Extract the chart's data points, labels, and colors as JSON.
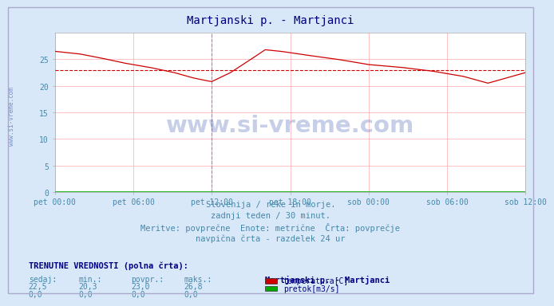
{
  "title": "Martjanski p. - Martjanci",
  "title_color": "#000080",
  "bg_color": "#d8e8f8",
  "plot_bg_color": "#ffffff",
  "grid_color": "#ffaaaa",
  "x_labels": [
    "pet 00:00",
    "pet 06:00",
    "pet 12:00",
    "pet 18:00",
    "sob 00:00",
    "sob 06:00",
    "sob 12:00"
  ],
  "x_ticks_pos": [
    0,
    0.25,
    0.5,
    0.75,
    1.0,
    1.25,
    1.5
  ],
  "ylim": [
    0,
    30
  ],
  "yticks": [
    0,
    5,
    10,
    15,
    20,
    25
  ],
  "avg_line_value": 23.0,
  "avg_line_color": "#cc0000",
  "temp_line_color": "#cc0000",
  "pretok_line_color": "#00aa00",
  "vline_color": "#ff44ff",
  "vline_positions": [
    0.5,
    1.5
  ],
  "watermark_text": "www.si-vreme.com",
  "watermark_color": "#3355aa",
  "watermark_alpha": 0.28,
  "footer_lines": [
    "Slovenija / reke in morje.",
    "zadnji teden / 30 minut.",
    "Meritve: povprečne  Enote: metrične  Črta: povprečje",
    "navpična črta - razdelek 24 ur"
  ],
  "footer_color": "#4488aa",
  "footer_fontsize": 7.5,
  "table_header": "TRENUTNE VREDNOSTI (polna črta):",
  "table_col_headers": [
    "sedaj:",
    "min.:",
    "povpr.:",
    "maks.:"
  ],
  "table_row1": [
    "22,5",
    "20,3",
    "23,0",
    "26,8"
  ],
  "table_row2": [
    "0,0",
    "0,0",
    "0,0",
    "0,0"
  ],
  "legend_title": "Martjanski p. - Martjanci",
  "legend_entries": [
    "temperatura[C]",
    "pretok[m3/s]"
  ],
  "legend_colors": [
    "#cc0000",
    "#00aa00"
  ],
  "key_t": [
    0,
    0.08,
    0.15,
    0.22,
    0.3,
    0.38,
    0.44,
    0.48,
    0.5,
    0.56,
    0.62,
    0.67,
    0.72,
    0.8,
    0.9,
    1.0,
    1.1,
    1.2,
    1.3,
    1.38,
    1.44,
    1.5
  ],
  "key_val": [
    26.5,
    26.0,
    25.2,
    24.3,
    23.5,
    22.5,
    21.5,
    21.0,
    20.8,
    22.5,
    24.8,
    26.8,
    26.5,
    25.8,
    25.0,
    24.0,
    23.5,
    22.8,
    21.8,
    20.5,
    21.5,
    22.5
  ]
}
